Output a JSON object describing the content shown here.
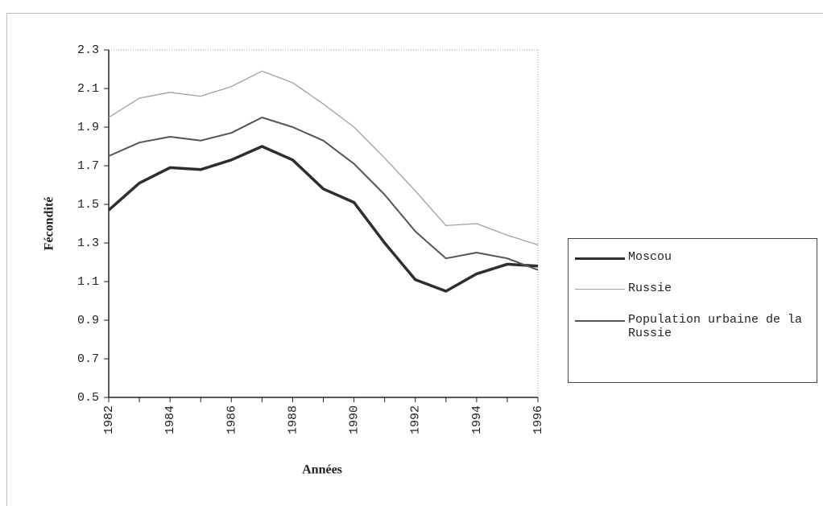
{
  "chart_data": {
    "type": "line",
    "y_label": "Fécondité",
    "x_label": "Années",
    "x": [
      1982,
      1983,
      1984,
      1985,
      1986,
      1987,
      1988,
      1989,
      1990,
      1991,
      1992,
      1993,
      1994,
      1995,
      1996
    ],
    "xlim": [
      1982,
      1996
    ],
    "xticks": [
      1982,
      1984,
      1986,
      1988,
      1990,
      1992,
      1994,
      1996
    ],
    "ylim": [
      0.5,
      2.3
    ],
    "yticks": [
      0.5,
      0.7,
      0.9,
      1.1,
      1.3,
      1.5,
      1.7,
      1.9,
      2.1,
      2.3
    ],
    "grid": false,
    "legend": "right",
    "series": [
      {
        "name": "Moscou",
        "color": "#2e2e2e",
        "line_width": 3.5,
        "values": [
          1.47,
          1.61,
          1.69,
          1.68,
          1.73,
          1.8,
          1.73,
          1.58,
          1.51,
          1.3,
          1.11,
          1.05,
          1.14,
          1.19,
          1.18
        ]
      },
      {
        "name": "Russie",
        "color": "#a0a0a0",
        "line_width": 1.3,
        "values": [
          1.95,
          2.05,
          2.08,
          2.06,
          2.11,
          2.19,
          2.13,
          2.02,
          1.9,
          1.74,
          1.57,
          1.39,
          1.4,
          1.34,
          1.29
        ]
      },
      {
        "name": "Population urbaine de la Russie",
        "color": "#555555",
        "line_width": 2,
        "values": [
          1.75,
          1.82,
          1.85,
          1.83,
          1.87,
          1.95,
          1.9,
          1.83,
          1.71,
          1.55,
          1.36,
          1.22,
          1.25,
          1.22,
          1.16
        ]
      }
    ]
  }
}
